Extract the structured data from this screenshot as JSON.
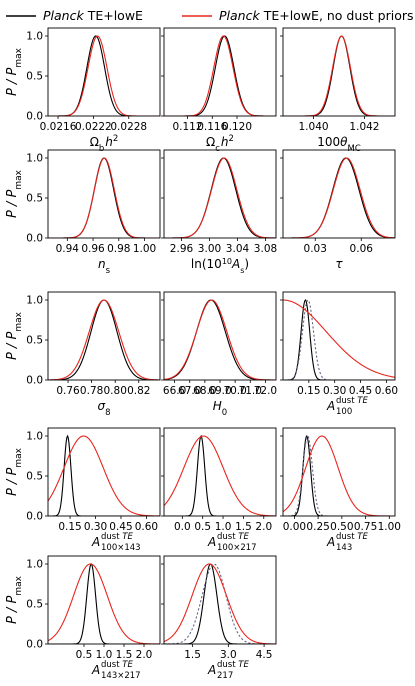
{
  "legend": {
    "items": [
      {
        "italic": "Planck",
        "rest": " TE+lowE",
        "color": "#000000",
        "dashed": false
      },
      {
        "italic": "Planck",
        "rest": " TE+lowE, no dust priors",
        "color": "#e8261e",
        "dashed": false
      }
    ]
  },
  "ylabel": {
    "main": "P / P",
    "sub": "max"
  },
  "yticks": [
    "0.0",
    "0.5",
    "1.0"
  ],
  "chart_data": [
    {
      "type": "line",
      "row": 0,
      "col": 0,
      "xlim": [
        0.02143,
        0.02333
      ],
      "ylim": [
        0,
        1.1
      ],
      "xticks": [
        0.0216,
        0.0222,
        0.0228
      ],
      "xticklabels": [
        "0.0216",
        "0.0222",
        "0.0228"
      ],
      "xlabel": {
        "main": "Ω",
        "sub": "b",
        "tail": "h",
        "sup": "2"
      },
      "series": [
        {
          "name": "Planck TE+lowE",
          "color": "#000000",
          "dash": false,
          "mean": 0.02224,
          "sigma": 0.00015
        },
        {
          "name": "Planck TE+lowE, no dust priors",
          "color": "#e8261e",
          "dash": false,
          "mean": 0.02227,
          "sigma": 0.00016
        }
      ]
    },
    {
      "type": "line",
      "row": 0,
      "col": 1,
      "xlim": [
        0.1082,
        0.1263
      ],
      "ylim": [
        0,
        1.1
      ],
      "xticks": [
        0.112,
        0.116,
        0.12
      ],
      "xticklabels": [
        "0.112",
        "0.116",
        "0.120"
      ],
      "xlabel": {
        "main": "Ω",
        "sub": "c",
        "tail": "h",
        "sup": "2"
      },
      "series": [
        {
          "name": "Planck TE+lowE",
          "color": "#000000",
          "dash": false,
          "mean": 0.118,
          "sigma": 0.0015
        },
        {
          "name": "Planck TE+lowE, no dust priors",
          "color": "#e8261e",
          "dash": false,
          "mean": 0.1178,
          "sigma": 0.00155
        }
      ]
    },
    {
      "type": "line",
      "row": 0,
      "col": 2,
      "xlim": [
        1.0388,
        1.0432
      ],
      "ylim": [
        0,
        1.1
      ],
      "xticks": [
        1.04,
        1.042
      ],
      "xticklabels": [
        "1.040",
        "1.042"
      ],
      "xlabel": {
        "main": "100θ",
        "sub": "MC",
        "tail": "",
        "sup": ""
      },
      "series": [
        {
          "name": "Planck TE+lowE",
          "color": "#000000",
          "dash": false,
          "mean": 1.0411,
          "sigma": 0.00033
        },
        {
          "name": "Planck TE+lowE, no dust priors",
          "color": "#e8261e",
          "dash": false,
          "mean": 1.0411,
          "sigma": 0.00035
        }
      ]
    },
    {
      "type": "line",
      "row": 1,
      "col": 0,
      "xlim": [
        0.925,
        1.012
      ],
      "ylim": [
        0,
        1.1
      ],
      "xticks": [
        0.94,
        0.96,
        0.98,
        1.0
      ],
      "xticklabels": [
        "0.94",
        "0.96",
        "0.98",
        "1.00"
      ],
      "xlabel": {
        "main": "n",
        "sub": "s",
        "tail": "",
        "sup": ""
      },
      "series": [
        {
          "name": "Planck TE+lowE",
          "color": "#000000",
          "dash": false,
          "mean": 0.9685,
          "sigma": 0.0075
        },
        {
          "name": "Planck TE+lowE, no dust priors",
          "color": "#e8261e",
          "dash": false,
          "mean": 0.9688,
          "sigma": 0.0077
        }
      ]
    },
    {
      "type": "line",
      "row": 1,
      "col": 1,
      "xlim": [
        2.935,
        3.095
      ],
      "ylim": [
        0,
        1.1
      ],
      "xticks": [
        2.96,
        3.0,
        3.04,
        3.08
      ],
      "xticklabels": [
        "2.96",
        "3.00",
        "3.04",
        "3.08"
      ],
      "xlabel": {
        "main": "ln(10",
        "sub": "",
        "tail": "A",
        "sup": "10",
        "special": "lnAs"
      },
      "series": [
        {
          "name": "Planck TE+lowE",
          "color": "#000000",
          "dash": false,
          "mean": 3.02,
          "sigma": 0.0175
        },
        {
          "name": "Planck TE+lowE, no dust priors",
          "color": "#e8261e",
          "dash": false,
          "mean": 3.021,
          "sigma": 0.018
        }
      ]
    },
    {
      "type": "line",
      "row": 1,
      "col": 2,
      "xlim": [
        0.009,
        0.082
      ],
      "ylim": [
        0,
        1.1
      ],
      "xticks": [
        0.03,
        0.06
      ],
      "xticklabels": [
        "0.03",
        "0.06"
      ],
      "xlabel": {
        "main": "τ",
        "sub": "",
        "tail": "",
        "sup": ""
      },
      "series": [
        {
          "name": "Planck TE+lowE",
          "color": "#000000",
          "dash": false,
          "mean": 0.05,
          "sigma": 0.0085
        },
        {
          "name": "Planck TE+lowE, no dust priors",
          "color": "#e8261e",
          "dash": false,
          "mean": 0.0505,
          "sigma": 0.0087
        }
      ]
    },
    {
      "type": "line",
      "row": 2,
      "col": 0,
      "xlim": [
        0.743,
        0.838
      ],
      "ylim": [
        0,
        1.1
      ],
      "xticks": [
        0.76,
        0.78,
        0.8,
        0.82
      ],
      "xticklabels": [
        "0.76",
        "0.78",
        "0.80",
        "0.82"
      ],
      "xlabel": {
        "main": "σ",
        "sub": "8",
        "tail": "",
        "sup": ""
      },
      "series": [
        {
          "name": "Planck TE+lowE",
          "color": "#000000",
          "dash": false,
          "mean": 0.7905,
          "sigma": 0.011
        },
        {
          "name": "Planck TE+lowE, no dust priors",
          "color": "#e8261e",
          "dash": false,
          "mean": 0.7905,
          "sigma": 0.0125
        }
      ]
    },
    {
      "type": "line",
      "row": 2,
      "col": 1,
      "xlim": [
        65.3,
        72.7
      ],
      "ylim": [
        0,
        1.1
      ],
      "xticks": [
        66.0,
        67.0,
        68.0,
        69.0,
        70.0,
        71.0,
        72.0
      ],
      "xticklabels": [
        "66.0",
        "67.0",
        "68.0",
        "69.0",
        "70.0",
        "71.0",
        "72.0"
      ],
      "xlabel": {
        "main": "H",
        "sub": "0",
        "tail": "",
        "sup": ""
      },
      "series": [
        {
          "name": "Planck TE+lowE",
          "color": "#000000",
          "dash": false,
          "mean": 68.4,
          "sigma": 0.95
        },
        {
          "name": "Planck TE+lowE, no dust priors",
          "color": "#e8261e",
          "dash": false,
          "mean": 68.45,
          "sigma": 1.0
        }
      ]
    },
    {
      "type": "line",
      "row": 2,
      "col": 2,
      "xlim": [
        0.0,
        0.65
      ],
      "ylim": [
        0,
        1.1
      ],
      "xticks": [
        0.15,
        0.3,
        0.45,
        0.6
      ],
      "xticklabels": [
        "0.15",
        "0.30",
        "0.45",
        "0.60"
      ],
      "xlabel": {
        "main": "A",
        "sub": "100",
        "tail": "",
        "sup": "dust TE"
      },
      "series": [
        {
          "name": "Planck TE+lowE",
          "color": "#000000",
          "dash": false,
          "mean": 0.13,
          "sigma": 0.025
        },
        {
          "name": "",
          "color": "#666688",
          "dash": true,
          "mean": 0.145,
          "sigma": 0.032
        },
        {
          "name": "Planck TE+lowE, no dust priors",
          "color": "#e8261e",
          "dash": false,
          "mean": 0.0,
          "sigma": 0.25
        }
      ]
    },
    {
      "type": "line",
      "row": 3,
      "col": 0,
      "xlim": [
        0.02,
        0.68
      ],
      "ylim": [
        0,
        1.1
      ],
      "xticks": [
        0.15,
        0.3,
        0.45,
        0.6
      ],
      "xticklabels": [
        "0.15",
        "0.30",
        "0.45",
        "0.60"
      ],
      "xlabel": {
        "main": "A",
        "sub": "100×143",
        "tail": "",
        "sup": "dust TE"
      },
      "series": [
        {
          "name": "Planck TE+lowE",
          "color": "#000000",
          "dash": false,
          "mean": 0.135,
          "sigma": 0.02
        },
        {
          "name": "Planck TE+lowE, no dust priors",
          "color": "#e8261e",
          "dash": false,
          "mean": 0.23,
          "sigma": 0.115
        }
      ]
    },
    {
      "type": "line",
      "row": 3,
      "col": 1,
      "xlim": [
        -0.45,
        2.3
      ],
      "ylim": [
        0,
        1.1
      ],
      "xticks": [
        0.0,
        0.5,
        1.0,
        1.5,
        2.0
      ],
      "xticklabels": [
        "0.0",
        "0.5",
        "1.0",
        "1.5",
        "2.0"
      ],
      "xlabel": {
        "main": "A",
        "sub": "100×217",
        "tail": "",
        "sup": "dust TE"
      },
      "series": [
        {
          "name": "Planck TE+lowE",
          "color": "#000000",
          "dash": false,
          "mean": 0.46,
          "sigma": 0.09
        },
        {
          "name": "Planck TE+lowE, no dust priors",
          "color": "#e8261e",
          "dash": false,
          "mean": 0.52,
          "sigma": 0.48
        }
      ]
    },
    {
      "type": "line",
      "row": 3,
      "col": 2,
      "xlim": [
        -0.12,
        1.06
      ],
      "ylim": [
        0,
        1.1
      ],
      "xticks": [
        0.0,
        0.25,
        0.5,
        0.75,
        1.0
      ],
      "xticklabels": [
        "0.00",
        "0.25",
        "0.50",
        "0.75",
        "1.00"
      ],
      "xlabel": {
        "main": "A",
        "sub": "143",
        "tail": "",
        "sup": "dust TE"
      },
      "series": [
        {
          "name": "Planck TE+lowE",
          "color": "#000000",
          "dash": false,
          "mean": 0.13,
          "sigma": 0.04
        },
        {
          "name": "",
          "color": "#666688",
          "dash": true,
          "mean": 0.14,
          "sigma": 0.05
        },
        {
          "name": "Planck TE+lowE, no dust priors",
          "color": "#e8261e",
          "dash": false,
          "mean": 0.29,
          "sigma": 0.17
        }
      ]
    },
    {
      "type": "line",
      "row": 4,
      "col": 0,
      "xlim": [
        -0.4,
        2.4
      ],
      "ylim": [
        0,
        1.1
      ],
      "xticks": [
        0.5,
        1.0,
        1.5,
        2.0
      ],
      "xticklabels": [
        "0.5",
        "1.0",
        "1.5",
        "2.0"
      ],
      "xlabel": {
        "main": "A",
        "sub": "143×217",
        "tail": "",
        "sup": "dust TE"
      },
      "series": [
        {
          "name": "Planck TE+lowE",
          "color": "#000000",
          "dash": false,
          "mean": 0.68,
          "sigma": 0.11
        },
        {
          "name": "Planck TE+lowE, no dust priors",
          "color": "#e8261e",
          "dash": false,
          "mean": 0.66,
          "sigma": 0.42
        }
      ]
    },
    {
      "type": "line",
      "row": 4,
      "col": 1,
      "xlim": [
        0.3,
        5.0
      ],
      "ylim": [
        0,
        1.1
      ],
      "xticks": [
        1.5,
        3.0,
        4.5
      ],
      "xticklabels": [
        "1.5",
        "3.0",
        "4.5"
      ],
      "xlabel": {
        "main": "A",
        "sub": "217",
        "tail": "",
        "sup": "dust TE"
      },
      "series": [
        {
          "name": "Planck TE+lowE",
          "color": "#000000",
          "dash": false,
          "mean": 2.25,
          "sigma": 0.27
        },
        {
          "name": "",
          "color": "#666688",
          "dash": true,
          "mean": 2.4,
          "sigma": 0.5
        },
        {
          "name": "Planck TE+lowE, no dust priors",
          "color": "#e8261e",
          "dash": false,
          "mean": 2.2,
          "sigma": 0.72
        }
      ]
    }
  ]
}
